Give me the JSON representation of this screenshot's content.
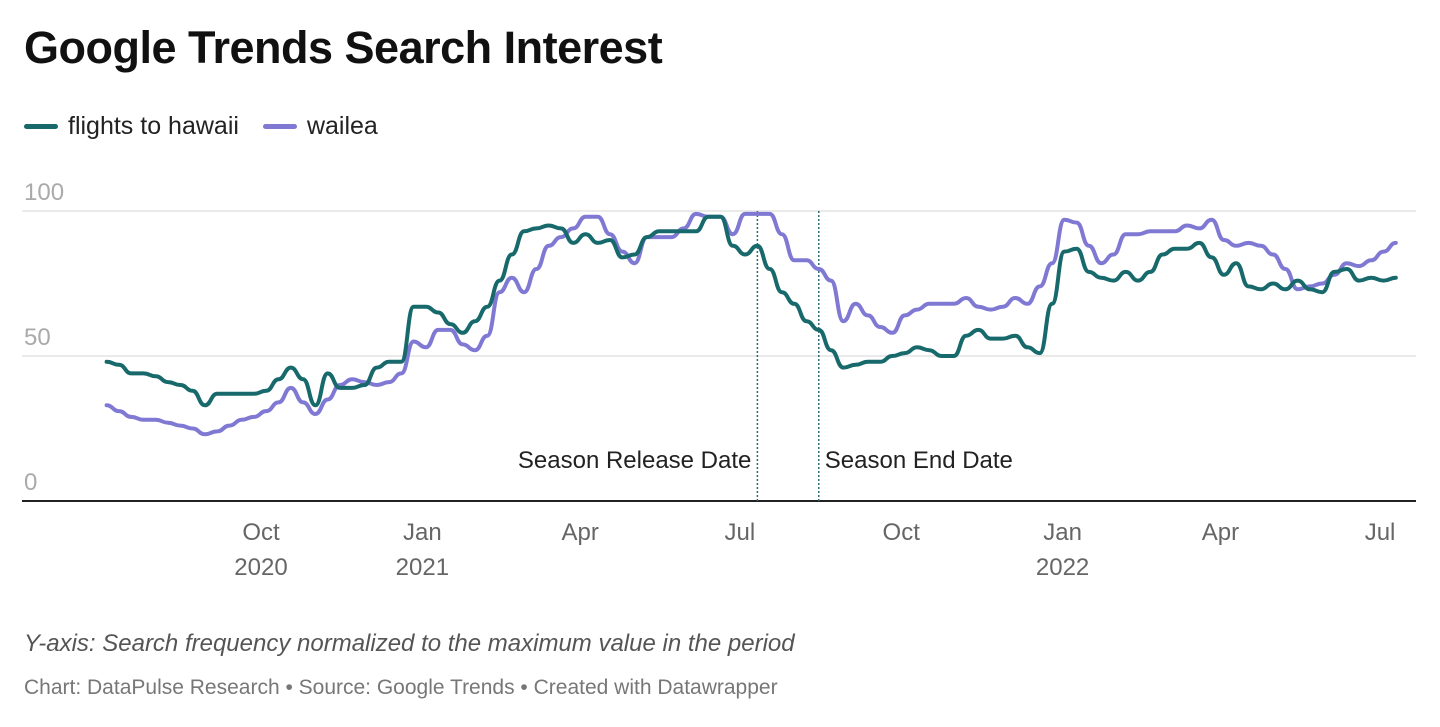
{
  "chart_data": {
    "type": "line",
    "title": "Google Trends Search Interest",
    "ylabel": "",
    "xlabel": "",
    "ylim": [
      0,
      100
    ],
    "yticks": [
      0,
      50,
      100
    ],
    "grid": true,
    "legend_placement": "top-left",
    "xticks": [
      {
        "date": "2020-10-01",
        "month": "Oct",
        "year": "2020"
      },
      {
        "date": "2021-01-01",
        "month": "Jan",
        "year": "2021"
      },
      {
        "date": "2021-04-01",
        "month": "Apr",
        "year": ""
      },
      {
        "date": "2021-07-01",
        "month": "Jul",
        "year": ""
      },
      {
        "date": "2021-10-01",
        "month": "Oct",
        "year": ""
      },
      {
        "date": "2022-01-01",
        "month": "Jan",
        "year": "2022"
      },
      {
        "date": "2022-04-01",
        "month": "Apr",
        "year": ""
      },
      {
        "date": "2022-07-01",
        "month": "Jul",
        "year": ""
      }
    ],
    "x": [
      "2020-07-05",
      "2020-07-12",
      "2020-07-19",
      "2020-07-26",
      "2020-08-02",
      "2020-08-09",
      "2020-08-16",
      "2020-08-23",
      "2020-08-30",
      "2020-09-06",
      "2020-09-13",
      "2020-09-20",
      "2020-09-27",
      "2020-10-04",
      "2020-10-11",
      "2020-10-18",
      "2020-10-25",
      "2020-11-01",
      "2020-11-08",
      "2020-11-15",
      "2020-11-22",
      "2020-11-29",
      "2020-12-06",
      "2020-12-13",
      "2020-12-20",
      "2020-12-27",
      "2021-01-03",
      "2021-01-10",
      "2021-01-17",
      "2021-01-24",
      "2021-01-31",
      "2021-02-07",
      "2021-02-14",
      "2021-02-21",
      "2021-02-28",
      "2021-03-07",
      "2021-03-14",
      "2021-03-21",
      "2021-03-28",
      "2021-04-04",
      "2021-04-11",
      "2021-04-18",
      "2021-04-25",
      "2021-05-02",
      "2021-05-09",
      "2021-05-16",
      "2021-05-23",
      "2021-05-30",
      "2021-06-06",
      "2021-06-13",
      "2021-06-20",
      "2021-06-27",
      "2021-07-04",
      "2021-07-11",
      "2021-07-18",
      "2021-07-25",
      "2021-08-01",
      "2021-08-08",
      "2021-08-15",
      "2021-08-22",
      "2021-08-29",
      "2021-09-05",
      "2021-09-12",
      "2021-09-19",
      "2021-09-26",
      "2021-10-03",
      "2021-10-10",
      "2021-10-17",
      "2021-10-24",
      "2021-10-31",
      "2021-11-07",
      "2021-11-14",
      "2021-11-21",
      "2021-11-28",
      "2021-12-05",
      "2021-12-12",
      "2021-12-19",
      "2021-12-26",
      "2022-01-02",
      "2022-01-09",
      "2022-01-16",
      "2022-01-23",
      "2022-01-30",
      "2022-02-06",
      "2022-02-13",
      "2022-02-20",
      "2022-02-27",
      "2022-03-06",
      "2022-03-13",
      "2022-03-20",
      "2022-03-27",
      "2022-04-03",
      "2022-04-10",
      "2022-04-17",
      "2022-04-24",
      "2022-05-01",
      "2022-05-08",
      "2022-05-15",
      "2022-05-22",
      "2022-05-29",
      "2022-06-05",
      "2022-06-12",
      "2022-06-19",
      "2022-06-26",
      "2022-07-03",
      "2022-07-10"
    ],
    "series": [
      {
        "name": "flights to hawaii",
        "color": "#17696b",
        "values": [
          48,
          47,
          44,
          44,
          43,
          41,
          40,
          38,
          33,
          37,
          37,
          37,
          37,
          38,
          42,
          46,
          42,
          33,
          44,
          39,
          39,
          40,
          46,
          48,
          48,
          67,
          67,
          65,
          61,
          58,
          62,
          67,
          76,
          85,
          93,
          94,
          95,
          94,
          89,
          92,
          89,
          90,
          84,
          85,
          91,
          93,
          93,
          93,
          93,
          98,
          98,
          88,
          85,
          88,
          80,
          72,
          68,
          62,
          59,
          52,
          46,
          47,
          48,
          48,
          50,
          51,
          53,
          52,
          50,
          50,
          57,
          59,
          56,
          56,
          57,
          53,
          51,
          68,
          86,
          87,
          79,
          77,
          76,
          79,
          76,
          79,
          85,
          87,
          87,
          89,
          84,
          78,
          82,
          74,
          73,
          75,
          73,
          76,
          73,
          72,
          79,
          80,
          76,
          77,
          76,
          77
        ]
      },
      {
        "name": "wailea",
        "color": "#8079d4",
        "values": [
          33,
          31,
          29,
          28,
          28,
          27,
          26,
          25,
          23,
          24,
          26,
          28,
          29,
          31,
          34,
          39,
          34,
          30,
          35,
          40,
          42,
          41,
          40,
          41,
          44,
          55,
          53,
          59,
          59,
          54,
          52,
          57,
          72,
          77,
          72,
          80,
          88,
          91,
          94,
          98,
          98,
          92,
          86,
          82,
          91,
          91,
          91,
          94,
          99,
          98,
          98,
          92,
          99,
          99,
          99,
          92,
          83,
          83,
          80,
          76,
          62,
          68,
          64,
          60,
          58,
          64,
          66,
          68,
          68,
          68,
          70,
          67,
          66,
          67,
          70,
          68,
          74,
          82,
          97,
          96,
          88,
          82,
          85,
          92,
          92,
          93,
          93,
          93,
          95,
          94,
          97,
          90,
          88,
          89,
          88,
          85,
          80,
          73,
          74,
          75,
          78,
          82,
          81,
          83,
          86,
          89
        ]
      }
    ],
    "annotations": [
      {
        "date": "2021-07-11",
        "label": "Season Release Date",
        "side": "left"
      },
      {
        "date": "2021-08-15",
        "label": "Season End Date",
        "side": "right"
      }
    ]
  },
  "note": "Y-axis: Search frequency normalized to the maximum value in the period",
  "credit": "Chart: DataPulse Research • Source: Google Trends  • Created with Datawrapper"
}
